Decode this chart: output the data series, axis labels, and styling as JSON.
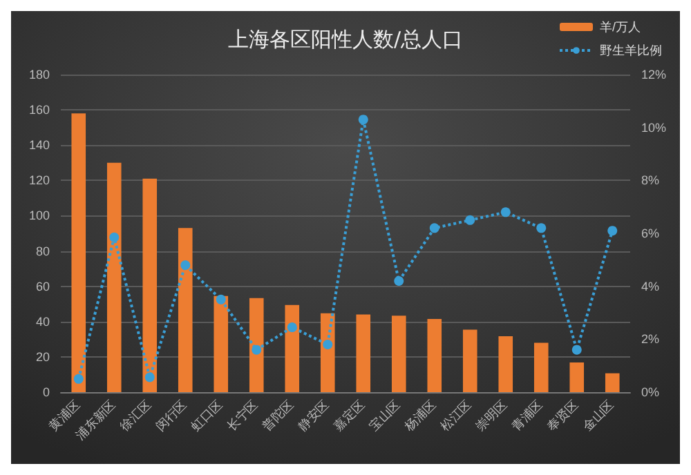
{
  "chart_data": {
    "type": "bar",
    "title": "上海各区阳性人数/总人口",
    "categories": [
      "黄浦区",
      "浦东新区",
      "徐汇区",
      "闵行区",
      "虹口区",
      "长宁区",
      "普陀区",
      "静安区",
      "嘉定区",
      "宝山区",
      "杨浦区",
      "松江区",
      "崇明区",
      "青浦区",
      "奉贤区",
      "金山区"
    ],
    "series": [
      {
        "name": "羊/万人",
        "color": "#ed7d31",
        "values": [
          158,
          130,
          121,
          93,
          54.5,
          53.3,
          49.4,
          44.7,
          44,
          43.3,
          41.5,
          35.4,
          31.7,
          28,
          16.8,
          10.7
        ]
      },
      {
        "name": "野生羊比例",
        "type": "line",
        "axis": "y2",
        "color": "#3a9fd6",
        "marker": "circle",
        "line_style": "dotted",
        "values": [
          0.5,
          5.85,
          0.56,
          4.8,
          3.5,
          1.6,
          2.45,
          1.8,
          10.3,
          4.2,
          6.2,
          6.5,
          6.8,
          6.2,
          1.6,
          6.1
        ]
      }
    ],
    "ylim": [
      0,
      180
    ],
    "yticks": [
      0,
      20,
      40,
      60,
      80,
      100,
      120,
      140,
      160,
      180
    ],
    "y2lim": [
      0,
      12
    ],
    "y2ticks": [
      {
        "value": 0,
        "label": "0%"
      },
      {
        "value": 2,
        "label": "2%"
      },
      {
        "value": 4,
        "label": "4%"
      },
      {
        "value": 6,
        "label": "6%"
      },
      {
        "value": 8,
        "label": "8%"
      },
      {
        "value": 10,
        "label": "10%"
      },
      {
        "value": 12,
        "label": "12%"
      }
    ],
    "grid": "y",
    "legend": "top right"
  }
}
